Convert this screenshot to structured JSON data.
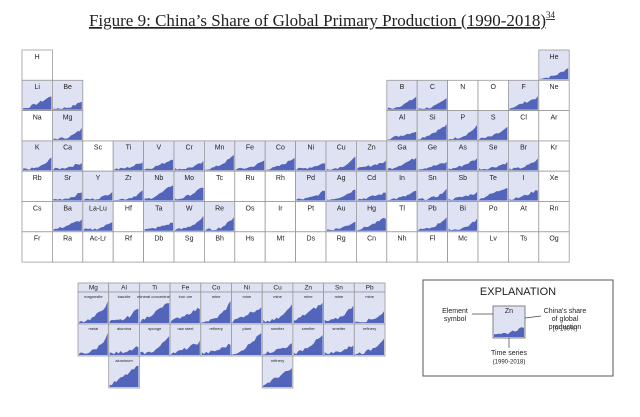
{
  "header": {
    "title": "Figure 9: China’s Share of Global Primary Production (1990-2018)",
    "note": "34"
  },
  "table": {
    "rows": [
      [
        {
          "symbol": "H",
          "chart": false
        },
        null,
        null,
        null,
        null,
        null,
        null,
        null,
        null,
        null,
        null,
        null,
        null,
        null,
        null,
        null,
        null,
        {
          "symbol": "He",
          "chart": true
        }
      ],
      [
        {
          "symbol": "Li",
          "chart": true
        },
        {
          "symbol": "Be",
          "chart": true
        },
        null,
        null,
        null,
        null,
        null,
        null,
        null,
        null,
        null,
        null,
        {
          "symbol": "B",
          "chart": true
        },
        {
          "symbol": "C",
          "chart": true
        },
        {
          "symbol": "N",
          "chart": false
        },
        {
          "symbol": "O",
          "chart": false
        },
        {
          "symbol": "F",
          "chart": true
        },
        {
          "symbol": "Ne",
          "chart": false
        }
      ],
      [
        {
          "symbol": "Na",
          "chart": false
        },
        {
          "symbol": "Mg",
          "chart": true
        },
        null,
        null,
        null,
        null,
        null,
        null,
        null,
        null,
        null,
        null,
        {
          "symbol": "Al",
          "chart": true
        },
        {
          "symbol": "Si",
          "chart": true
        },
        {
          "symbol": "P",
          "chart": true
        },
        {
          "symbol": "S",
          "chart": true
        },
        {
          "symbol": "Cl",
          "chart": false
        },
        {
          "symbol": "Ar",
          "chart": false
        }
      ],
      [
        {
          "symbol": "K",
          "chart": true
        },
        {
          "symbol": "Ca",
          "chart": true
        },
        {
          "symbol": "Sc",
          "chart": false
        },
        {
          "symbol": "Ti",
          "chart": true
        },
        {
          "symbol": "V",
          "chart": true
        },
        {
          "symbol": "Cr",
          "chart": true
        },
        {
          "symbol": "Mn",
          "chart": true
        },
        {
          "symbol": "Fe",
          "chart": true
        },
        {
          "symbol": "Co",
          "chart": true
        },
        {
          "symbol": "Ni",
          "chart": true
        },
        {
          "symbol": "Cu",
          "chart": true
        },
        {
          "symbol": "Zn",
          "chart": true
        },
        {
          "symbol": "Ga",
          "chart": true
        },
        {
          "symbol": "Ge",
          "chart": true
        },
        {
          "symbol": "As",
          "chart": true
        },
        {
          "symbol": "Se",
          "chart": true
        },
        {
          "symbol": "Br",
          "chart": true
        },
        {
          "symbol": "Kr",
          "chart": false
        }
      ],
      [
        {
          "symbol": "Rb",
          "chart": false
        },
        {
          "symbol": "Sr",
          "chart": true
        },
        {
          "symbol": "Y",
          "chart": true
        },
        {
          "symbol": "Zr",
          "chart": true
        },
        {
          "symbol": "Nb",
          "chart": true
        },
        {
          "symbol": "Mo",
          "chart": true
        },
        {
          "symbol": "Tc",
          "chart": false
        },
        {
          "symbol": "Ru",
          "chart": false
        },
        {
          "symbol": "Rh",
          "chart": false
        },
        {
          "symbol": "Pd",
          "chart": true
        },
        {
          "symbol": "Ag",
          "chart": true
        },
        {
          "symbol": "Cd",
          "chart": true
        },
        {
          "symbol": "In",
          "chart": true
        },
        {
          "symbol": "Sn",
          "chart": true
        },
        {
          "symbol": "Sb",
          "chart": true
        },
        {
          "symbol": "Te",
          "chart": true
        },
        {
          "symbol": "I",
          "chart": true
        },
        {
          "symbol": "Xe",
          "chart": false
        }
      ],
      [
        {
          "symbol": "Cs",
          "chart": false
        },
        {
          "symbol": "Ba",
          "chart": true
        },
        {
          "symbol": "La-Lu",
          "chart": true
        },
        {
          "symbol": "Hf",
          "chart": false
        },
        {
          "symbol": "Ta",
          "chart": true
        },
        {
          "symbol": "W",
          "chart": true
        },
        {
          "symbol": "Re",
          "chart": true
        },
        {
          "symbol": "Os",
          "chart": false
        },
        {
          "symbol": "Ir",
          "chart": false
        },
        {
          "symbol": "Pt",
          "chart": false
        },
        {
          "symbol": "Au",
          "chart": true
        },
        {
          "symbol": "Hg",
          "chart": true
        },
        {
          "symbol": "Tl",
          "chart": false
        },
        {
          "symbol": "Pb",
          "chart": true
        },
        {
          "symbol": "Bi",
          "chart": true
        },
        {
          "symbol": "Po",
          "chart": false
        },
        {
          "symbol": "At",
          "chart": false
        },
        {
          "symbol": "Rn",
          "chart": false
        }
      ],
      [
        {
          "symbol": "Fr",
          "chart": false
        },
        {
          "symbol": "Ra",
          "chart": false
        },
        {
          "symbol": "Ac-Lr",
          "chart": false
        },
        {
          "symbol": "Rf",
          "chart": false
        },
        {
          "symbol": "Db",
          "chart": false
        },
        {
          "symbol": "Sg",
          "chart": false
        },
        {
          "symbol": "Bh",
          "chart": false
        },
        {
          "symbol": "Hs",
          "chart": false
        },
        {
          "symbol": "Mt",
          "chart": false
        },
        {
          "symbol": "Ds",
          "chart": false
        },
        {
          "symbol": "Rg",
          "chart": false
        },
        {
          "symbol": "Cn",
          "chart": false
        },
        {
          "symbol": "Nh",
          "chart": false
        },
        {
          "symbol": "Fl",
          "chart": false
        },
        {
          "symbol": "Mc",
          "chart": false
        },
        {
          "symbol": "Lv",
          "chart": false
        },
        {
          "symbol": "Ts",
          "chart": false
        },
        {
          "symbol": "Og",
          "chart": false
        }
      ]
    ]
  },
  "processing": {
    "columns": [
      {
        "element": "Mg",
        "stages": [
          "magnesite",
          "metal"
        ]
      },
      {
        "element": "Al",
        "stages": [
          "bauxite",
          "alumina",
          "aluminum"
        ]
      },
      {
        "element": "Ti",
        "stages": [
          "mineral concentrate",
          "sponge"
        ]
      },
      {
        "element": "Fe",
        "stages": [
          "iron ore",
          "raw steel"
        ]
      },
      {
        "element": "Co",
        "stages": [
          "mine",
          "refinery"
        ]
      },
      {
        "element": "Ni",
        "stages": [
          "mine",
          "plant"
        ]
      },
      {
        "element": "Cu",
        "stages": [
          "mine",
          "smelter",
          "refinery"
        ]
      },
      {
        "element": "Zn",
        "stages": [
          "mine",
          "smelter"
        ]
      },
      {
        "element": "Sn",
        "stages": [
          "mine",
          "smelter"
        ]
      },
      {
        "element": "Pb",
        "stages": [
          "mine",
          "refinery"
        ]
      }
    ]
  },
  "explanation": {
    "title": "EXPLANATION",
    "element_label": "Element symbol",
    "sample_symbol": "Zn",
    "share_label": "China's share of global production",
    "range_label": "(0-100%)",
    "time_label": "Time series",
    "time_range": "(1990-2018)"
  }
}
